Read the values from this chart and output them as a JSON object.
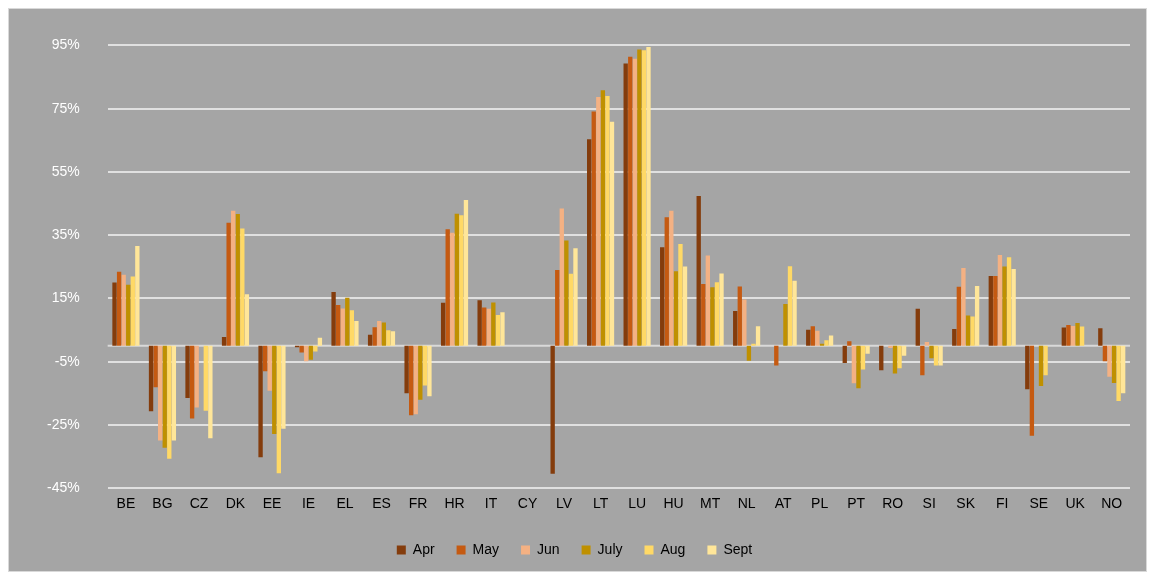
{
  "chart_data": {
    "type": "bar",
    "categories": [
      "BE",
      "BG",
      "CZ",
      "DK",
      "EE",
      "IE",
      "EL",
      "ES",
      "FR",
      "HR",
      "IT",
      "CY",
      "LV",
      "LT",
      "LU",
      "HU",
      "MT",
      "NL",
      "AT",
      "PL",
      "PT",
      "RO",
      "SI",
      "SK",
      "FI",
      "SE",
      "UK",
      "NO"
    ],
    "series": [
      {
        "name": "Apr",
        "color": "#843c0c",
        "values": [
          20.0,
          -20.7,
          -16.5,
          2.8,
          -35.2,
          -0.4,
          17.0,
          3.5,
          -15.0,
          13.6,
          14.4,
          null,
          -40.4,
          65.3,
          89.3,
          31.2,
          47.4,
          11.0,
          null,
          5.1,
          -5.4,
          -7.7,
          11.7,
          5.3,
          22.1,
          -13.7,
          5.8,
          5.6
        ]
      },
      {
        "name": "May",
        "color": "#c55a11",
        "values": [
          23.4,
          -13.1,
          -23.0,
          38.9,
          -8.0,
          -2.1,
          12.9,
          5.9,
          -21.9,
          36.9,
          12.1,
          null,
          24.0,
          74.1,
          91.4,
          40.7,
          19.6,
          18.8,
          -6.2,
          6.2,
          1.5,
          null,
          -9.3,
          18.7,
          22.1,
          -28.4,
          6.6,
          -4.9
        ]
      },
      {
        "name": "Jun",
        "color": "#f4b183",
        "values": [
          22.5,
          -29.9,
          -19.5,
          42.7,
          -14.2,
          -4.9,
          11.8,
          7.9,
          -21.6,
          35.8,
          11.7,
          null,
          43.4,
          78.7,
          90.8,
          42.7,
          28.6,
          14.7,
          null,
          4.8,
          -11.8,
          -0.7,
          1.2,
          24.6,
          28.7,
          null,
          6.3,
          -9.8
        ]
      },
      {
        "name": "July",
        "color": "#bf9000",
        "values": [
          19.3,
          -32.2,
          null,
          41.7,
          -27.9,
          -4.4,
          15.2,
          7.4,
          -17.0,
          41.8,
          13.7,
          null,
          33.3,
          80.8,
          93.7,
          23.6,
          18.5,
          -4.7,
          13.2,
          0.7,
          -13.4,
          -8.7,
          -3.9,
          9.6,
          25.1,
          -12.7,
          7.2,
          -11.7
        ]
      },
      {
        "name": "Aug",
        "color": "#ffd966",
        "values": [
          21.9,
          -35.7,
          -20.5,
          37.1,
          -40.3,
          -1.8,
          11.3,
          4.9,
          -12.5,
          41.3,
          9.8,
          null,
          22.8,
          79.0,
          93.5,
          32.2,
          20.1,
          0.7,
          25.2,
          1.8,
          -7.5,
          -7.1,
          -6.2,
          9.3,
          28.0,
          -9.3,
          6.1,
          -17.4
        ]
      },
      {
        "name": "Sept",
        "color": "#ffe699",
        "values": [
          31.6,
          -29.9,
          -29.2,
          16.3,
          -26.2,
          2.6,
          7.9,
          4.6,
          -15.9,
          46.1,
          10.6,
          null,
          30.9,
          70.9,
          94.5,
          25.1,
          22.9,
          6.2,
          20.6,
          3.3,
          -2.5,
          -3.1,
          -6.2,
          18.9,
          24.3,
          null,
          null,
          -15.0
        ]
      }
    ],
    "ylim": [
      -45,
      95
    ],
    "yticks": [
      {
        "value": -45,
        "label": "-45%"
      },
      {
        "value": -25,
        "label": "-25%"
      },
      {
        "value": -5,
        "label": "-5%"
      },
      {
        "value": 15,
        "label": "15%"
      },
      {
        "value": 35,
        "label": "35%"
      },
      {
        "value": 55,
        "label": "55%"
      },
      {
        "value": 75,
        "label": "75%"
      },
      {
        "value": 95,
        "label": "95%"
      }
    ],
    "grid": "y",
    "legend": "bottom"
  }
}
